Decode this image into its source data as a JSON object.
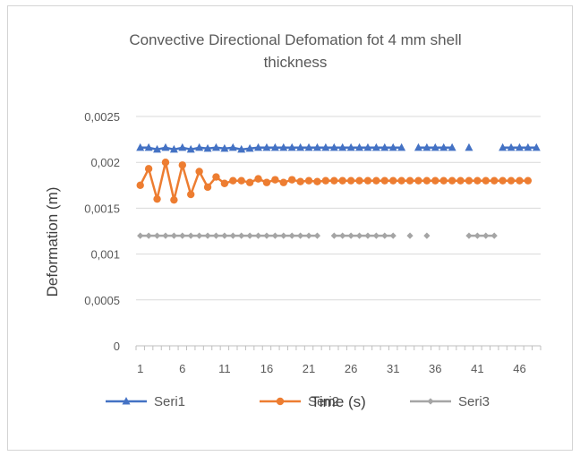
{
  "chart_data": {
    "type": "line",
    "title_line1": "Convective Directional Defomation fot 4 mm shell",
    "title_line2": "thickness",
    "xlabel": "Time (s)",
    "ylabel": "Deformation (m)",
    "ylim": [
      0,
      0.0025
    ],
    "y_ticks": [
      "0",
      "0,0005",
      "0,001",
      "0,0015",
      "0,002",
      "0,0025"
    ],
    "y_tick_values": [
      0,
      0.0005,
      0.001,
      0.0015,
      0.002,
      0.0025
    ],
    "x_categories_count": 48,
    "x_tick_labels": [
      "1",
      "6",
      "11",
      "16",
      "21",
      "26",
      "31",
      "36",
      "41",
      "46"
    ],
    "x_tick_values": [
      1,
      6,
      11,
      16,
      21,
      26,
      31,
      36,
      41,
      46
    ],
    "legend_position": "bottom",
    "grid": "horizontal",
    "series": [
      {
        "name": "Seri1",
        "color": "#4472C4",
        "marker": "triangle",
        "points": [
          [
            1,
            0.00216
          ],
          [
            2,
            0.00216
          ],
          [
            3,
            0.00214
          ],
          [
            4,
            0.00216
          ],
          [
            5,
            0.00214
          ],
          [
            6,
            0.00216
          ],
          [
            7,
            0.00214
          ],
          [
            8,
            0.00216
          ],
          [
            9,
            0.00215
          ],
          [
            10,
            0.00216
          ],
          [
            11,
            0.00215
          ],
          [
            12,
            0.00216
          ],
          [
            13,
            0.00214
          ],
          [
            14,
            0.00215
          ],
          [
            15,
            0.00216
          ],
          [
            16,
            0.00216
          ],
          [
            17,
            0.00216
          ],
          [
            18,
            0.00216
          ],
          [
            19,
            0.00216
          ],
          [
            20,
            0.00216
          ],
          [
            21,
            0.00216
          ],
          [
            22,
            0.00216
          ],
          [
            23,
            0.00216
          ],
          [
            24,
            0.00216
          ],
          [
            25,
            0.00216
          ],
          [
            26,
            0.00216
          ],
          [
            27,
            0.00216
          ],
          [
            28,
            0.00216
          ],
          [
            29,
            0.00216
          ],
          [
            30,
            0.00216
          ],
          [
            31,
            0.00216
          ],
          [
            32,
            0.00216
          ],
          null,
          [
            34,
            0.00216
          ],
          [
            35,
            0.00216
          ],
          [
            36,
            0.00216
          ],
          [
            37,
            0.00216
          ],
          [
            38,
            0.00216
          ],
          null,
          [
            40,
            0.00216
          ],
          null,
          [
            44,
            0.00216
          ],
          [
            45,
            0.00216
          ],
          [
            46,
            0.00216
          ],
          [
            47,
            0.00216
          ],
          [
            48,
            0.00216
          ]
        ]
      },
      {
        "name": "Seri2",
        "color": "#ED7D31",
        "marker": "circle",
        "points": [
          [
            1,
            0.00175
          ],
          [
            2,
            0.00193
          ],
          [
            3,
            0.0016
          ],
          [
            4,
            0.002
          ],
          [
            5,
            0.00159
          ],
          [
            6,
            0.00197
          ],
          [
            7,
            0.00165
          ],
          [
            8,
            0.0019
          ],
          [
            9,
            0.00173
          ],
          [
            10,
            0.00184
          ],
          [
            11,
            0.00177
          ],
          [
            12,
            0.0018
          ],
          [
            13,
            0.0018
          ],
          [
            14,
            0.00178
          ],
          [
            15,
            0.00182
          ],
          [
            16,
            0.00178
          ],
          [
            17,
            0.00181
          ],
          [
            18,
            0.00178
          ],
          [
            19,
            0.00181
          ],
          [
            20,
            0.00179
          ],
          [
            21,
            0.0018
          ],
          [
            22,
            0.00179
          ],
          [
            23,
            0.0018
          ],
          [
            24,
            0.0018
          ],
          [
            25,
            0.0018
          ],
          [
            26,
            0.0018
          ],
          [
            27,
            0.0018
          ],
          [
            28,
            0.0018
          ],
          [
            29,
            0.0018
          ],
          [
            30,
            0.0018
          ],
          [
            31,
            0.0018
          ],
          [
            32,
            0.0018
          ],
          [
            33,
            0.0018
          ],
          [
            34,
            0.0018
          ],
          [
            35,
            0.0018
          ],
          [
            36,
            0.0018
          ],
          [
            37,
            0.0018
          ],
          [
            38,
            0.0018
          ],
          [
            39,
            0.0018
          ],
          [
            40,
            0.0018
          ],
          [
            41,
            0.0018
          ],
          [
            42,
            0.0018
          ],
          [
            43,
            0.0018
          ],
          [
            44,
            0.0018
          ],
          [
            45,
            0.0018
          ],
          [
            46,
            0.0018
          ],
          [
            47,
            0.0018
          ]
        ]
      },
      {
        "name": "Seri3",
        "color": "#A5A5A5",
        "marker": "diamond",
        "points": [
          [
            1,
            0.0012
          ],
          [
            2,
            0.0012
          ],
          [
            3,
            0.0012
          ],
          [
            4,
            0.0012
          ],
          [
            5,
            0.0012
          ],
          [
            6,
            0.0012
          ],
          [
            7,
            0.0012
          ],
          [
            8,
            0.0012
          ],
          [
            9,
            0.0012
          ],
          [
            10,
            0.0012
          ],
          [
            11,
            0.0012
          ],
          [
            12,
            0.0012
          ],
          [
            13,
            0.0012
          ],
          [
            14,
            0.0012
          ],
          [
            15,
            0.0012
          ],
          [
            16,
            0.0012
          ],
          [
            17,
            0.0012
          ],
          [
            18,
            0.0012
          ],
          [
            19,
            0.0012
          ],
          [
            20,
            0.0012
          ],
          [
            21,
            0.0012
          ],
          [
            22,
            0.0012
          ],
          null,
          [
            24,
            0.0012
          ],
          [
            25,
            0.0012
          ],
          [
            26,
            0.0012
          ],
          [
            27,
            0.0012
          ],
          [
            28,
            0.0012
          ],
          [
            29,
            0.0012
          ],
          [
            30,
            0.0012
          ],
          [
            31,
            0.0012
          ],
          null,
          [
            33,
            0.0012
          ],
          null,
          [
            35,
            0.0012
          ],
          null,
          [
            40,
            0.0012
          ],
          [
            41,
            0.0012
          ],
          [
            42,
            0.0012
          ],
          [
            43,
            0.0012
          ]
        ]
      }
    ]
  }
}
